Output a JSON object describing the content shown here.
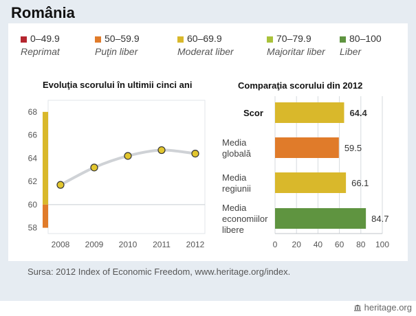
{
  "title": "România",
  "legend": [
    {
      "range": "0–49.9",
      "label": "Reprimat",
      "color": "#b5262f"
    },
    {
      "range": "50–59.9",
      "label": "Puţin liber",
      "color": "#e07b2a"
    },
    {
      "range": "60–69.9",
      "label": "Moderat liber",
      "color": "#d9b82b"
    },
    {
      "range": "70–79.9",
      "label": "Majoritar liber",
      "color": "#a9c23a"
    },
    {
      "range": "80–100",
      "label": "Liber",
      "color": "#5f9440"
    }
  ],
  "source": "Sursa: 2012 Index of Economic Freedom, www.heritage.org/index.",
  "brand": "heritage.org",
  "chart_data": [
    {
      "type": "line",
      "title": "Evoluţia scorului în ultimii cinci ani",
      "x": [
        "2008",
        "2009",
        "2010",
        "2011",
        "2012"
      ],
      "series": [
        {
          "values": [
            61.7,
            63.2,
            64.2,
            64.7,
            64.4
          ]
        }
      ],
      "ylim": [
        57.5,
        69
      ],
      "yticks": [
        "58",
        "60",
        "62",
        "64",
        "66",
        "68"
      ],
      "grid": false,
      "band": {
        "from": 58,
        "to": 68,
        "split": 60,
        "lower_color": "#e07b2a",
        "upper_color": "#d9b82b"
      },
      "reference_line": 60
    },
    {
      "type": "bar",
      "orientation": "horizontal",
      "title": "Comparaţia scorului din 2012",
      "categories": [
        "Scor",
        "Media globală",
        "Media regiunii",
        "Media economiilor libere"
      ],
      "values": [
        64.4,
        59.5,
        66.1,
        84.7
      ],
      "value_labels": [
        "64.4",
        "59.5",
        "66.1",
        "84.7"
      ],
      "colors": [
        "#d9b82b",
        "#e07b2a",
        "#d9b82b",
        "#5f9440"
      ],
      "xlim": [
        0,
        100
      ],
      "xticks": [
        "0",
        "20",
        "40",
        "60",
        "80",
        "100"
      ],
      "grid": true
    }
  ]
}
